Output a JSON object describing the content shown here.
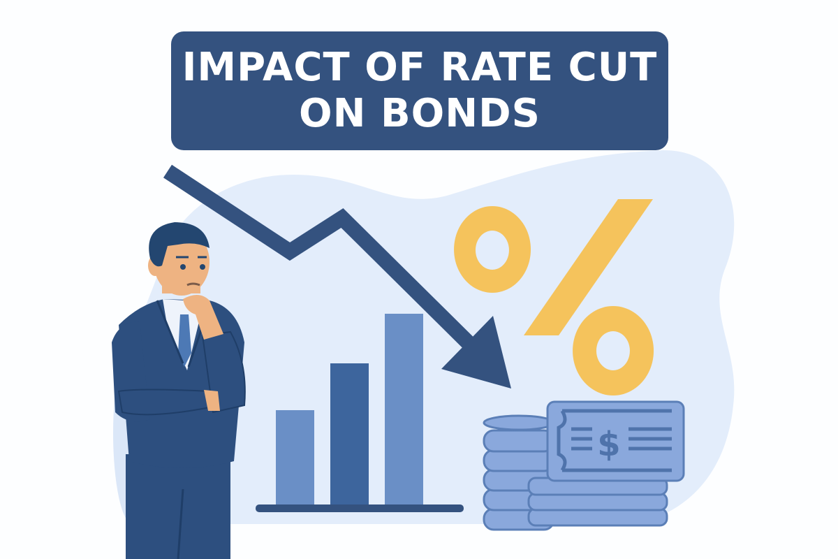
{
  "title": {
    "line1": "IMPACT OF RATE CUT",
    "line2": "ON BONDS"
  },
  "colors": {
    "navy": "#34527f",
    "bar_light": "#6a8fc6",
    "bar_dark": "#3d659d",
    "percent_yellow": "#f5c35c",
    "background_blob": "#e3edfb",
    "money_blue": "#8aa8dc"
  },
  "icons": [
    "down-trend-arrow-icon",
    "bar-chart-icon",
    "percent-icon",
    "coin-stack-icon",
    "dollar-bill-icon",
    "businessman-figure"
  ],
  "bill_symbol": "$"
}
